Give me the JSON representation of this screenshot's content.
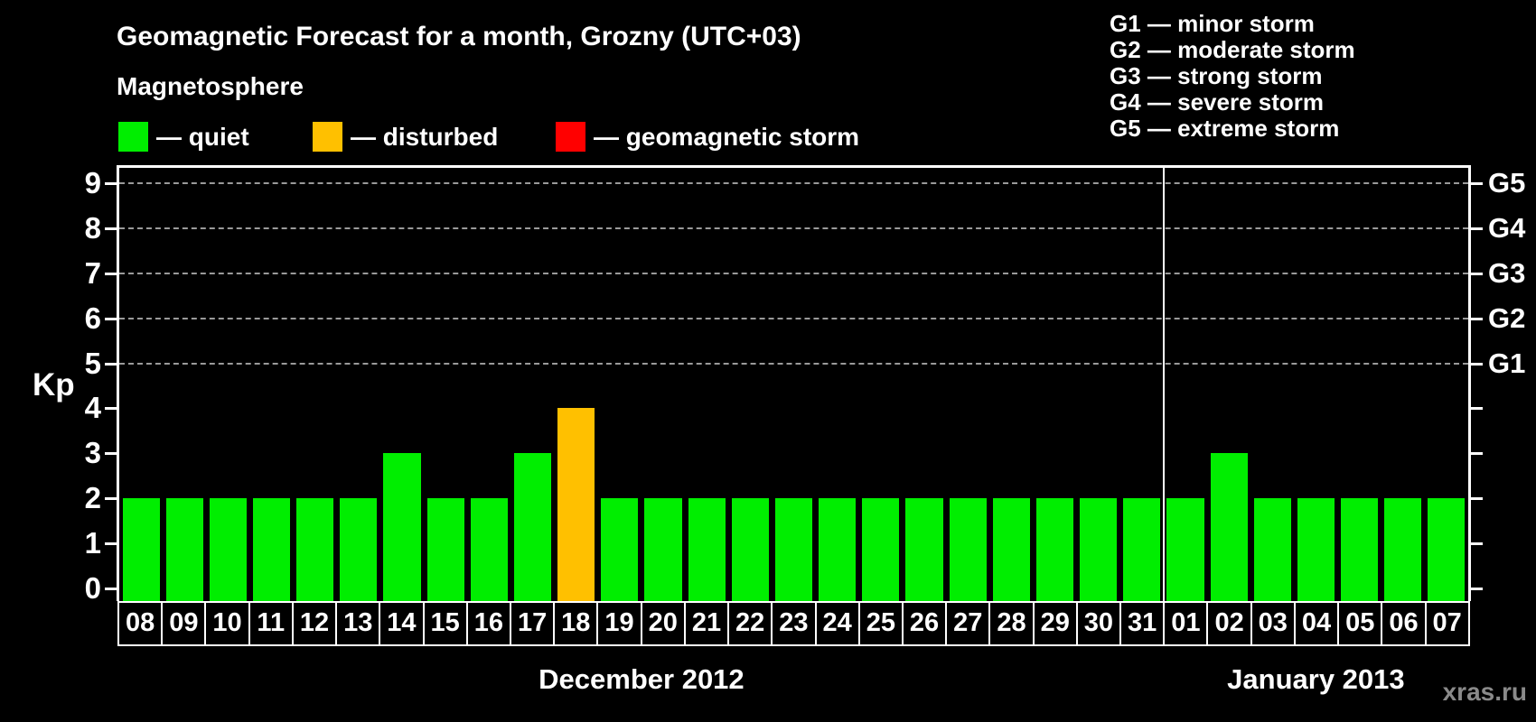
{
  "chart_data": {
    "type": "bar",
    "title": "Geomagnetic Forecast for a month, Grozny (UTC+03)",
    "subtitle": "Magnetosphere",
    "ylabel": "Kp",
    "ylim": [
      0,
      9
    ],
    "yticks": [
      0,
      1,
      2,
      3,
      4,
      5,
      6,
      7,
      8,
      9
    ],
    "dashed_gridline_levels": [
      5,
      6,
      7,
      8,
      9
    ],
    "grid": "dashed horizontal at storm levels only",
    "legend_position": "top-left",
    "right_axis": [
      {
        "kp": 5,
        "label": "G1"
      },
      {
        "kp": 6,
        "label": "G2"
      },
      {
        "kp": 7,
        "label": "G3"
      },
      {
        "kp": 8,
        "label": "G4"
      },
      {
        "kp": 9,
        "label": "G5"
      }
    ],
    "status_colors": {
      "quiet": "#00EE00",
      "disturbed": "#FFC000",
      "storm": "#FF0000"
    },
    "months": [
      {
        "label": "December 2012",
        "days": [
          {
            "date": "08",
            "kp": 2,
            "status": "quiet"
          },
          {
            "date": "09",
            "kp": 2,
            "status": "quiet"
          },
          {
            "date": "10",
            "kp": 2,
            "status": "quiet"
          },
          {
            "date": "11",
            "kp": 2,
            "status": "quiet"
          },
          {
            "date": "12",
            "kp": 2,
            "status": "quiet"
          },
          {
            "date": "13",
            "kp": 2,
            "status": "quiet"
          },
          {
            "date": "14",
            "kp": 3,
            "status": "quiet"
          },
          {
            "date": "15",
            "kp": 2,
            "status": "quiet"
          },
          {
            "date": "16",
            "kp": 2,
            "status": "quiet"
          },
          {
            "date": "17",
            "kp": 3,
            "status": "quiet"
          },
          {
            "date": "18",
            "kp": 4,
            "status": "disturbed"
          },
          {
            "date": "19",
            "kp": 2,
            "status": "quiet"
          },
          {
            "date": "20",
            "kp": 2,
            "status": "quiet"
          },
          {
            "date": "21",
            "kp": 2,
            "status": "quiet"
          },
          {
            "date": "22",
            "kp": 2,
            "status": "quiet"
          },
          {
            "date": "23",
            "kp": 2,
            "status": "quiet"
          },
          {
            "date": "24",
            "kp": 2,
            "status": "quiet"
          },
          {
            "date": "25",
            "kp": 2,
            "status": "quiet"
          },
          {
            "date": "26",
            "kp": 2,
            "status": "quiet"
          },
          {
            "date": "27",
            "kp": 2,
            "status": "quiet"
          },
          {
            "date": "28",
            "kp": 2,
            "status": "quiet"
          },
          {
            "date": "29",
            "kp": 2,
            "status": "quiet"
          },
          {
            "date": "30",
            "kp": 2,
            "status": "quiet"
          },
          {
            "date": "31",
            "kp": 2,
            "status": "quiet"
          }
        ]
      },
      {
        "label": "January 2013",
        "days": [
          {
            "date": "01",
            "kp": 2,
            "status": "quiet"
          },
          {
            "date": "02",
            "kp": 3,
            "status": "quiet"
          },
          {
            "date": "03",
            "kp": 2,
            "status": "quiet"
          },
          {
            "date": "04",
            "kp": 2,
            "status": "quiet"
          },
          {
            "date": "05",
            "kp": 2,
            "status": "quiet"
          },
          {
            "date": "06",
            "kp": 2,
            "status": "quiet"
          },
          {
            "date": "07",
            "kp": 2,
            "status": "quiet"
          }
        ]
      }
    ]
  },
  "magnetosphere_legend": [
    {
      "status": "quiet",
      "label": "— quiet"
    },
    {
      "status": "disturbed",
      "label": "— disturbed"
    },
    {
      "status": "storm",
      "label": "— geomagnetic storm"
    }
  ],
  "storm_scale_legend": [
    "G1 — minor storm",
    "G2 — moderate storm",
    "G3 — strong storm",
    "G4 — severe storm",
    "G5 — extreme storm"
  ],
  "watermark": "xras.ru"
}
